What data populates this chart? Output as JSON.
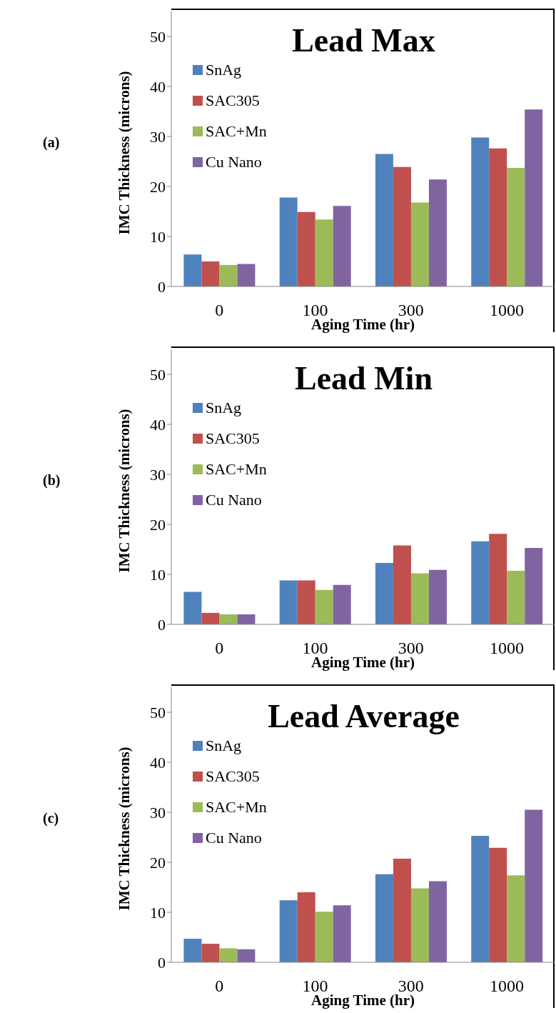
{
  "chart_data": [
    {
      "type": "bar",
      "title": "Lead Max",
      "xlabel": "Aging Time (hr)",
      "ylabel": "IMC Thickness (microns)",
      "annotations": [
        "(a)"
      ],
      "categories": [
        "0",
        "100",
        "300",
        "1000"
      ],
      "ylim": [
        0,
        55
      ],
      "yticks": [
        0,
        10,
        20,
        30,
        40,
        50
      ],
      "grid": false,
      "legend": "top left",
      "series": [
        {
          "name": "SnAg",
          "color": "#4f81bd",
          "values": [
            6.4,
            17.8,
            26.5,
            29.8
          ]
        },
        {
          "name": "SAC305",
          "color": "#c0504d",
          "values": [
            5.0,
            14.9,
            23.9,
            27.6
          ]
        },
        {
          "name": "SAC+Mn",
          "color": "#9bbb59",
          "values": [
            4.3,
            13.4,
            16.8,
            23.7
          ]
        },
        {
          "name": "Cu Nano",
          "color": "#8064a2",
          "values": [
            4.5,
            16.1,
            21.4,
            35.4
          ]
        }
      ]
    },
    {
      "type": "bar",
      "title": "Lead Min",
      "xlabel": "Aging Time (hr)",
      "ylabel": "IMC Thickness (microns)",
      "annotations": [
        "(b)"
      ],
      "categories": [
        "0",
        "100",
        "300",
        "1000"
      ],
      "ylim": [
        0,
        55
      ],
      "yticks": [
        0,
        10,
        20,
        30,
        40,
        50
      ],
      "grid": false,
      "legend": "top left",
      "series": [
        {
          "name": "SnAg",
          "color": "#4f81bd",
          "values": [
            6.5,
            8.8,
            12.3,
            16.6
          ]
        },
        {
          "name": "SAC305",
          "color": "#c0504d",
          "values": [
            2.3,
            8.8,
            15.8,
            18.1
          ]
        },
        {
          "name": "SAC+Mn",
          "color": "#9bbb59",
          "values": [
            2.0,
            6.9,
            10.2,
            10.7
          ]
        },
        {
          "name": "Cu Nano",
          "color": "#8064a2",
          "values": [
            2.0,
            7.9,
            10.9,
            15.3
          ]
        }
      ]
    },
    {
      "type": "bar",
      "title": "Lead Average",
      "xlabel": "Aging Time (hr)",
      "ylabel": "IMC Thickness (microns)",
      "annotations": [
        "(c)"
      ],
      "categories": [
        "0",
        "100",
        "300",
        "1000"
      ],
      "ylim": [
        0,
        55
      ],
      "yticks": [
        0,
        10,
        20,
        30,
        40,
        50
      ],
      "grid": false,
      "legend": "top left",
      "series": [
        {
          "name": "SnAg",
          "color": "#4f81bd",
          "values": [
            4.7,
            12.4,
            17.6,
            25.3
          ]
        },
        {
          "name": "SAC305",
          "color": "#c0504d",
          "values": [
            3.7,
            14.0,
            20.7,
            22.9
          ]
        },
        {
          "name": "SAC+Mn",
          "color": "#9bbb59",
          "values": [
            2.8,
            10.1,
            14.8,
            17.4
          ]
        },
        {
          "name": "Cu Nano",
          "color": "#8064a2",
          "values": [
            2.6,
            11.4,
            16.2,
            30.5
          ]
        }
      ]
    }
  ]
}
